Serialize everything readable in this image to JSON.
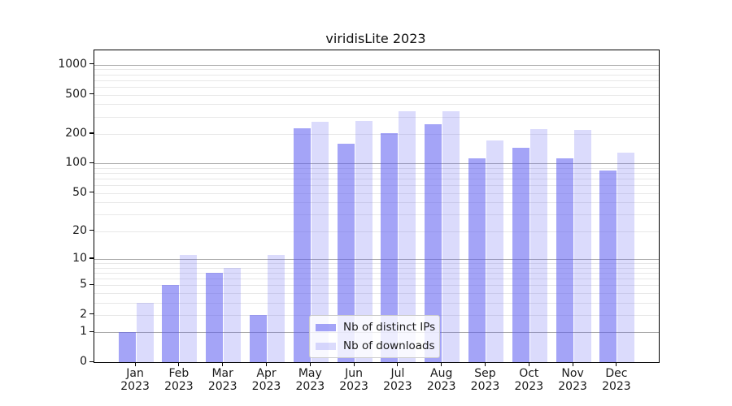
{
  "title": "viridisLite 2023",
  "chart_data": {
    "type": "bar",
    "title": "viridisLite 2023",
    "categories": [
      "Jan",
      "Feb",
      "Mar",
      "Apr",
      "May",
      "Jun",
      "Jul",
      "Aug",
      "Sep",
      "Oct",
      "Nov",
      "Dec"
    ],
    "category_year": "2023",
    "series": [
      {
        "name": "Nb of distinct IPs",
        "color": "rgba(90,90,240,0.55)",
        "values": [
          1,
          5,
          7,
          2,
          230,
          160,
          202,
          250,
          113,
          144,
          114,
          85
        ]
      },
      {
        "name": "Nb of downloads",
        "color": "rgba(90,90,240,0.22)",
        "values": [
          3,
          11,
          8,
          11,
          265,
          270,
          337,
          337,
          172,
          223,
          219,
          130
        ]
      }
    ],
    "xlabel": "",
    "ylabel": "",
    "yscale": "log1p",
    "ylim": [
      0,
      1400
    ],
    "yticks": [
      0,
      1,
      2,
      5,
      10,
      20,
      50,
      100,
      200,
      500,
      1000
    ],
    "major_gridlines": [
      1,
      10,
      100,
      1000
    ],
    "minor_gridlines": [
      2,
      3,
      4,
      5,
      6,
      7,
      8,
      9,
      20,
      30,
      40,
      50,
      60,
      70,
      80,
      90,
      200,
      300,
      400,
      500,
      600,
      700,
      800,
      900
    ],
    "grid": true,
    "legend_position": "lower center inside plot",
    "colors": {
      "bar_base": "#5a5af0",
      "major_grid": "#ababab",
      "minor_grid": "#e8e8e8",
      "spine": "#000000",
      "text": "#1a1a1a",
      "legend_border": "#cccccc"
    }
  }
}
